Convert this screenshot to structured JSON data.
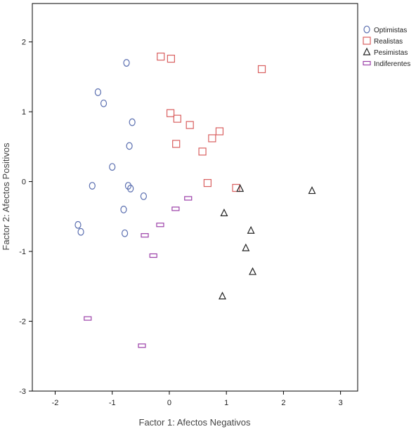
{
  "chart_data": {
    "type": "scatter",
    "title": "",
    "xlabel": "Factor 1: Afectos Negativos",
    "ylabel": "Factor 2: Afectos Positivos",
    "xlim": [
      -2.4,
      3.3
    ],
    "ylim": [
      -3,
      2.55
    ],
    "xticks": [
      -2,
      -1,
      0,
      1,
      2,
      3
    ],
    "yticks": [
      -3,
      -2,
      -1,
      0,
      1,
      2
    ],
    "xtick_labels": [
      "-2",
      "-1",
      "0",
      "1",
      "2",
      "3"
    ],
    "ytick_labels": [
      "-3",
      "-2",
      "-1",
      "0",
      "1",
      "2"
    ],
    "grid": false,
    "legend_position": "top-right",
    "series": [
      {
        "name": "Optimistas",
        "marker": "circle",
        "color": "#5b6fb0",
        "points": [
          {
            "x": -0.75,
            "y": 1.7
          },
          {
            "x": -1.25,
            "y": 1.28
          },
          {
            "x": -1.15,
            "y": 1.12
          },
          {
            "x": -0.65,
            "y": 0.85
          },
          {
            "x": -0.7,
            "y": 0.51
          },
          {
            "x": -1.0,
            "y": 0.21
          },
          {
            "x": -1.35,
            "y": -0.06
          },
          {
            "x": -0.72,
            "y": -0.06
          },
          {
            "x": -0.68,
            "y": -0.1
          },
          {
            "x": -0.45,
            "y": -0.21
          },
          {
            "x": -0.8,
            "y": -0.4
          },
          {
            "x": -1.6,
            "y": -0.62
          },
          {
            "x": -1.55,
            "y": -0.72
          },
          {
            "x": -0.78,
            "y": -0.74
          }
        ]
      },
      {
        "name": "Realistas",
        "marker": "square",
        "color": "#d95f5f",
        "points": [
          {
            "x": -0.15,
            "y": 1.79
          },
          {
            "x": 0.03,
            "y": 1.76
          },
          {
            "x": 1.62,
            "y": 1.61
          },
          {
            "x": 0.02,
            "y": 0.98
          },
          {
            "x": 0.14,
            "y": 0.9
          },
          {
            "x": 0.36,
            "y": 0.81
          },
          {
            "x": 0.88,
            "y": 0.72
          },
          {
            "x": 0.75,
            "y": 0.62
          },
          {
            "x": 0.12,
            "y": 0.54
          },
          {
            "x": 0.58,
            "y": 0.43
          },
          {
            "x": 0.67,
            "y": -0.02
          },
          {
            "x": 1.17,
            "y": -0.09
          }
        ]
      },
      {
        "name": "Pesimistas",
        "marker": "triangle",
        "color": "#222222",
        "points": [
          {
            "x": 1.24,
            "y": -0.1
          },
          {
            "x": 2.5,
            "y": -0.13
          },
          {
            "x": 0.96,
            "y": -0.45
          },
          {
            "x": 1.43,
            "y": -0.7
          },
          {
            "x": 1.34,
            "y": -0.95
          },
          {
            "x": 1.46,
            "y": -1.29
          },
          {
            "x": 0.93,
            "y": -1.64
          }
        ]
      },
      {
        "name": "Indiferentes",
        "marker": "rect",
        "color": "#9b3fa8",
        "points": [
          {
            "x": 0.33,
            "y": -0.24
          },
          {
            "x": 0.11,
            "y": -0.39
          },
          {
            "x": -0.16,
            "y": -0.62
          },
          {
            "x": -0.43,
            "y": -0.77
          },
          {
            "x": -0.28,
            "y": -1.06
          },
          {
            "x": -1.43,
            "y": -1.96
          },
          {
            "x": -0.48,
            "y": -2.35
          }
        ]
      }
    ]
  }
}
